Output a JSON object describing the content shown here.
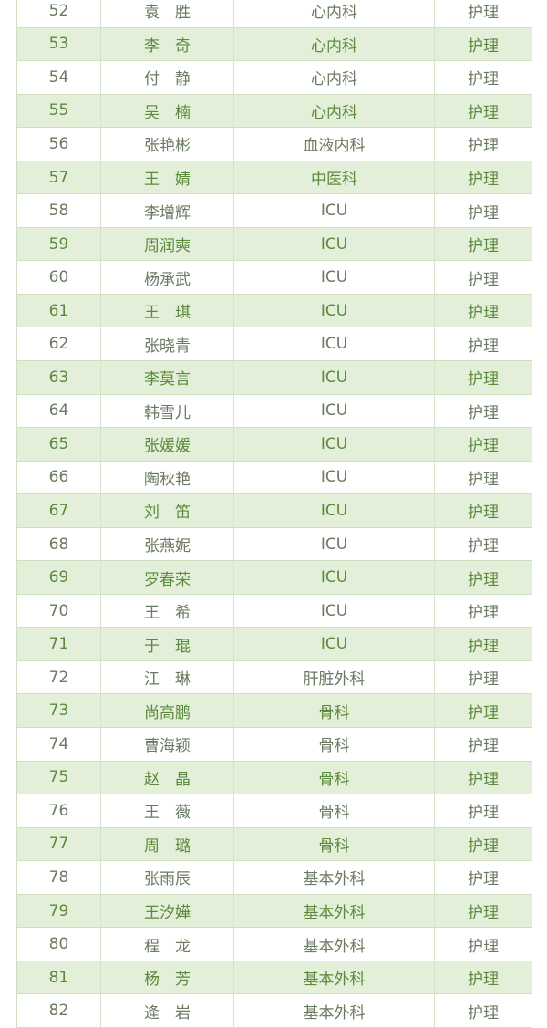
{
  "colors": {
    "shaded_row": "#e3efd9",
    "shaded_text": "#5b8a3c",
    "plain_text": "#6b7a62",
    "border": "#cfe0c0"
  },
  "rows": [
    {
      "no": "52",
      "name": "袁　胜",
      "dept": "心内科",
      "role": "护理"
    },
    {
      "no": "53",
      "name": "李　奇",
      "dept": "心内科",
      "role": "护理"
    },
    {
      "no": "54",
      "name": "付　静",
      "dept": "心内科",
      "role": "护理"
    },
    {
      "no": "55",
      "name": "吴　楠",
      "dept": "心内科",
      "role": "护理"
    },
    {
      "no": "56",
      "name": "张艳彬",
      "dept": "血液内科",
      "role": "护理"
    },
    {
      "no": "57",
      "name": "王　婧",
      "dept": "中医科",
      "role": "护理"
    },
    {
      "no": "58",
      "name": "李增辉",
      "dept": "ICU",
      "role": "护理"
    },
    {
      "no": "59",
      "name": "周润奭",
      "dept": "ICU",
      "role": "护理"
    },
    {
      "no": "60",
      "name": "杨承武",
      "dept": "ICU",
      "role": "护理"
    },
    {
      "no": "61",
      "name": "王　琪",
      "dept": "ICU",
      "role": "护理"
    },
    {
      "no": "62",
      "name": "张晓青",
      "dept": "ICU",
      "role": "护理"
    },
    {
      "no": "63",
      "name": "李莫言",
      "dept": "ICU",
      "role": "护理"
    },
    {
      "no": "64",
      "name": "韩雪儿",
      "dept": "ICU",
      "role": "护理"
    },
    {
      "no": "65",
      "name": "张媛媛",
      "dept": "ICU",
      "role": "护理"
    },
    {
      "no": "66",
      "name": "陶秋艳",
      "dept": "ICU",
      "role": "护理"
    },
    {
      "no": "67",
      "name": "刘　笛",
      "dept": "ICU",
      "role": "护理"
    },
    {
      "no": "68",
      "name": "张燕妮",
      "dept": "ICU",
      "role": "护理"
    },
    {
      "no": "69",
      "name": "罗春荣",
      "dept": "ICU",
      "role": "护理"
    },
    {
      "no": "70",
      "name": "王　希",
      "dept": "ICU",
      "role": "护理"
    },
    {
      "no": "71",
      "name": "于　琨",
      "dept": "ICU",
      "role": "护理"
    },
    {
      "no": "72",
      "name": "江　琳",
      "dept": "肝脏外科",
      "role": "护理"
    },
    {
      "no": "73",
      "name": "尚高鹏",
      "dept": "骨科",
      "role": "护理"
    },
    {
      "no": "74",
      "name": "曹海颖",
      "dept": "骨科",
      "role": "护理"
    },
    {
      "no": "75",
      "name": "赵　晶",
      "dept": "骨科",
      "role": "护理"
    },
    {
      "no": "76",
      "name": "王　薇",
      "dept": "骨科",
      "role": "护理"
    },
    {
      "no": "77",
      "name": "周　璐",
      "dept": "骨科",
      "role": "护理"
    },
    {
      "no": "78",
      "name": "张雨辰",
      "dept": "基本外科",
      "role": "护理"
    },
    {
      "no": "79",
      "name": "王汐嬅",
      "dept": "基本外科",
      "role": "护理"
    },
    {
      "no": "80",
      "name": "程　龙",
      "dept": "基本外科",
      "role": "护理"
    },
    {
      "no": "81",
      "name": "杨　芳",
      "dept": "基本外科",
      "role": "护理"
    },
    {
      "no": "82",
      "name": "逄　岩",
      "dept": "基本外科",
      "role": "护理"
    }
  ]
}
